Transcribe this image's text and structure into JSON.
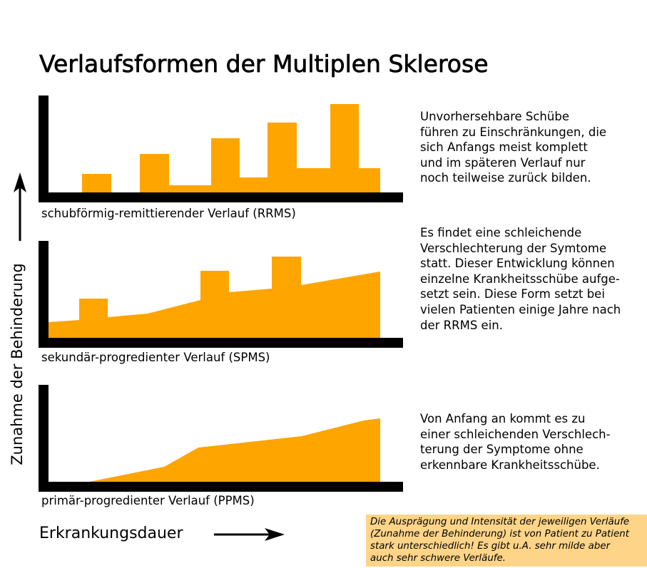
{
  "title": "Verlaufsformen der Multiplen Sklerose",
  "accent_color": "#ffa500",
  "y_axis_label": "Zunahme der Behinderung",
  "x_axis_label": "Erkrankungsdauer",
  "panels": [
    {
      "label": "schubförmig-remittierender Verlauf (RRMS)",
      "description": "Unvorhersehbare Schübe\nführen zu Einschränkungen, die\nsich Anfangs meist komplett\nund im späteren Verlauf nur\nnoch teilweise zurück bilden."
    },
    {
      "label": "sekundär-progredienter Verlauf (SPMS)",
      "description": "Es findet eine schleichende\nVerschlechterung der Symtome\nstatt. Dieser Entwicklung können\neinzelne Krankheitsschübe aufge-\nsetzt sein. Diese Form setzt bei\nvielen Patienten einige Jahre nach\nder RRMS ein."
    },
    {
      "label": "primär-progredienter Verlauf (PPMS)",
      "description": "Von Anfang an kommt es zu\neiner schleichenden Verschlech-\nterung der Symptome ohne\nerkennbare Krankheitsschübe."
    }
  ],
  "note": "Die Ausprägung und Intensität der jeweiligen Verläufe\n(Zunahme der Behinderung) ist von Patient zu Patient\nstark unterschiedlich! Es gibt u.A. sehr milde aber\nauch sehr schwere Verläufe."
}
